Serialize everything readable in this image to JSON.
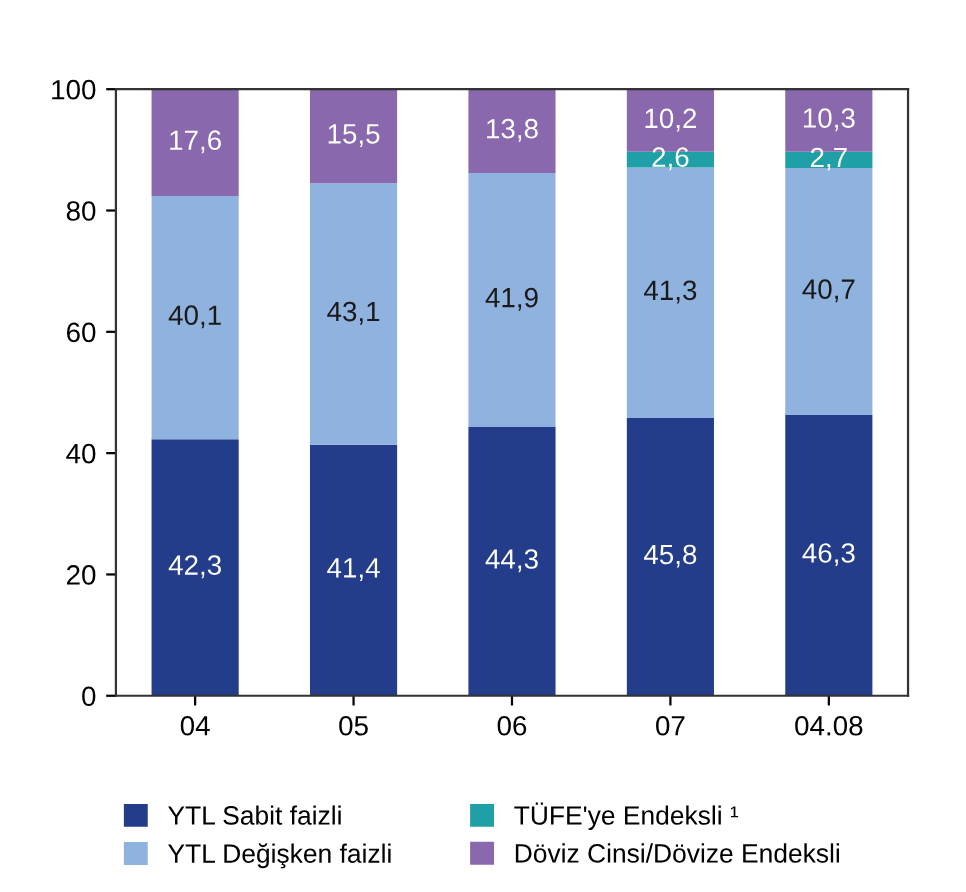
{
  "chart_data": {
    "type": "bar",
    "stacked": true,
    "categories": [
      "04",
      "05",
      "06",
      "07",
      "04.08"
    ],
    "series": [
      {
        "name": "YTL Sabit faizli",
        "color": "#233d8a",
        "values": [
          42.3,
          41.4,
          44.3,
          45.8,
          46.3
        ],
        "value_labels": [
          "42,3",
          "41,4",
          "44,3",
          "45,8",
          "46,3"
        ]
      },
      {
        "name": "YTL Değişken faizli",
        "color": "#8fb3de",
        "values": [
          40.1,
          43.1,
          41.9,
          41.3,
          40.7
        ],
        "value_labels": [
          "40,1",
          "43,1",
          "41,9",
          "41,3",
          "40,7"
        ]
      },
      {
        "name": "TÜFE'ye Endeksli ¹",
        "color": "#1ea0a6",
        "values": [
          null,
          null,
          null,
          2.6,
          2.7
        ],
        "value_labels": [
          null,
          null,
          null,
          "2,6",
          "2,7"
        ]
      },
      {
        "name": "Döviz Cinsi/Dövize Endeksli",
        "color": "#8a68ae",
        "values": [
          17.6,
          15.5,
          13.8,
          10.2,
          10.3
        ],
        "value_labels": [
          "17,6",
          "15,5",
          "13,8",
          "10,2",
          "10,3"
        ]
      }
    ],
    "ylim": [
      0,
      100
    ],
    "yticks": [
      0,
      20,
      40,
      60,
      80,
      100
    ],
    "grid": false,
    "legend": "bottom"
  }
}
